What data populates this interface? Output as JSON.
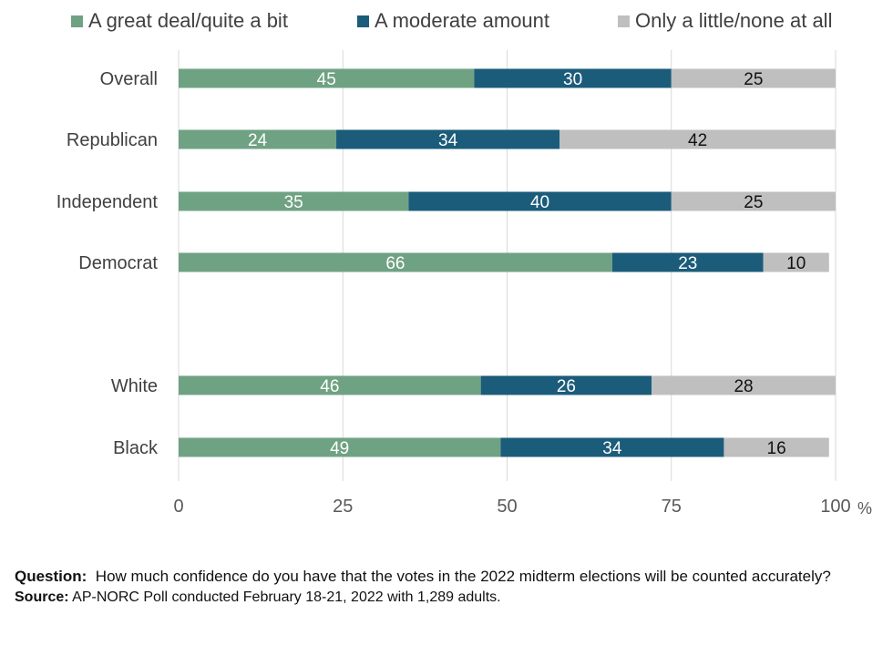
{
  "chart_data": {
    "type": "bar",
    "orientation": "horizontal",
    "stacked": true,
    "categories": [
      "Overall",
      "Republican",
      "Independent",
      "Democrat",
      "White",
      "Black"
    ],
    "series": [
      {
        "name": "A great deal/quite a bit",
        "color": "#6fa283",
        "values": [
          45,
          24,
          35,
          66,
          46,
          49
        ]
      },
      {
        "name": "A moderate amount",
        "color": "#1b5c7a",
        "values": [
          30,
          34,
          40,
          23,
          26,
          34
        ]
      },
      {
        "name": "Only a little/none at all",
        "color": "#bfbfbf",
        "values": [
          25,
          42,
          25,
          10,
          28,
          16
        ]
      }
    ],
    "xlim": [
      0,
      100
    ],
    "xticks": [
      "0",
      "25",
      "50",
      "75",
      "100"
    ],
    "x_unit": "%",
    "grid": true,
    "legend_position": "top"
  },
  "notes": {
    "question_label": "Question:",
    "question_text": "How much confidence do you have that the votes in the 2022 midterm elections will be counted accurately?",
    "source_label": "Source:",
    "source_text": "AP-NORC Poll conducted February 18-21, 2022 with 1,289 adults."
  }
}
